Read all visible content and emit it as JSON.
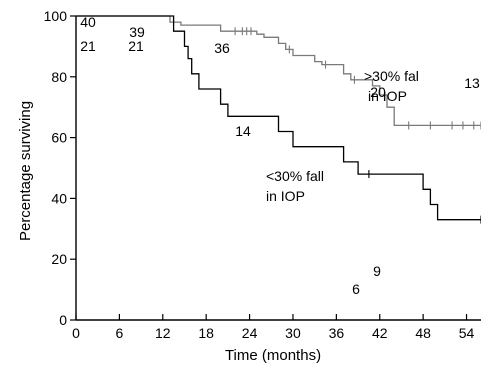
{
  "chart_data": {
    "type": "line",
    "title": "",
    "xlabel": "Time (months)",
    "ylabel": "Percentage surviving",
    "xlim": [
      0,
      56
    ],
    "ylim": [
      0,
      100
    ],
    "x_ticks": [
      0,
      6,
      12,
      18,
      24,
      30,
      36,
      42,
      48,
      54
    ],
    "y_ticks": [
      0,
      20,
      40,
      60,
      80,
      100
    ],
    "grid": false,
    "series": [
      {
        "name": ">30% fall in IOP",
        "label_lines": [
          ">30% fal",
          "in IOP"
        ],
        "color": "#7a7a7a",
        "steps": [
          [
            0,
            100
          ],
          [
            13,
            100
          ],
          [
            13,
            98
          ],
          [
            14.5,
            98
          ],
          [
            14.5,
            97
          ],
          [
            20,
            97
          ],
          [
            20,
            95
          ],
          [
            25,
            95
          ],
          [
            25,
            94
          ],
          [
            26,
            94
          ],
          [
            26,
            93
          ],
          [
            28,
            93
          ],
          [
            28,
            91
          ],
          [
            29,
            91
          ],
          [
            29,
            89
          ],
          [
            30,
            89
          ],
          [
            30,
            87
          ],
          [
            33,
            87
          ],
          [
            33,
            85
          ],
          [
            34,
            85
          ],
          [
            34,
            84
          ],
          [
            37,
            84
          ],
          [
            37,
            81
          ],
          [
            38,
            81
          ],
          [
            38,
            79
          ],
          [
            41,
            79
          ],
          [
            41,
            77
          ],
          [
            42,
            77
          ],
          [
            42,
            74
          ],
          [
            43,
            74
          ],
          [
            43,
            70
          ],
          [
            44,
            70
          ],
          [
            44,
            64
          ],
          [
            56,
            64
          ]
        ],
        "censored": [
          [
            22,
            95
          ],
          [
            23,
            95
          ],
          [
            23.6,
            95
          ],
          [
            24.2,
            95
          ],
          [
            29.5,
            89
          ],
          [
            34.5,
            84
          ],
          [
            38.5,
            79
          ],
          [
            46,
            64
          ],
          [
            49,
            64
          ],
          [
            52,
            64
          ],
          [
            53.5,
            64
          ],
          [
            55,
            64
          ],
          [
            56,
            64
          ]
        ],
        "at_risk": [
          [
            40,
            "40"
          ],
          [
            39,
            "39"
          ],
          [
            36,
            "36"
          ],
          [
            20,
            "20"
          ],
          [
            13,
            "13"
          ]
        ]
      },
      {
        "name": "<30% fall in IOP",
        "label_lines": [
          "<30% fall",
          "in IOP"
        ],
        "color": "#000000",
        "steps": [
          [
            0,
            100
          ],
          [
            13.5,
            100
          ],
          [
            13.5,
            95
          ],
          [
            15,
            95
          ],
          [
            15,
            90
          ],
          [
            15.5,
            90
          ],
          [
            15.5,
            86
          ],
          [
            16,
            86
          ],
          [
            16,
            81
          ],
          [
            17,
            81
          ],
          [
            17,
            76
          ],
          [
            20,
            76
          ],
          [
            20,
            71
          ],
          [
            21,
            71
          ],
          [
            21,
            67
          ],
          [
            28,
            67
          ],
          [
            28,
            62
          ],
          [
            30,
            62
          ],
          [
            30,
            57
          ],
          [
            37,
            57
          ],
          [
            37,
            52
          ],
          [
            39,
            52
          ],
          [
            39,
            48
          ],
          [
            48,
            48
          ],
          [
            48,
            43
          ],
          [
            49,
            43
          ],
          [
            49,
            38
          ],
          [
            50,
            38
          ],
          [
            50,
            33
          ],
          [
            56,
            33
          ]
        ],
        "censored": [
          [
            40.5,
            48
          ],
          [
            56,
            33
          ]
        ],
        "at_risk": [
          [
            21,
            "21"
          ],
          [
            21,
            "21"
          ],
          [
            14,
            "14"
          ],
          [
            9,
            "9"
          ],
          [
            6,
            "6"
          ]
        ]
      }
    ]
  }
}
